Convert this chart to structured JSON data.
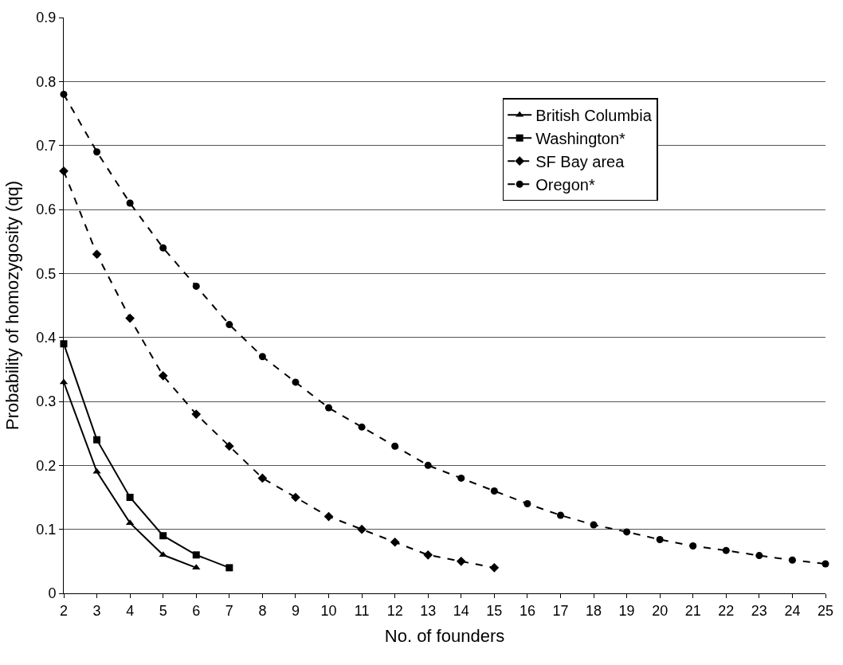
{
  "chart_data": {
    "type": "line",
    "xlabel": "No. of founders",
    "ylabel": "Probability of homozygosity (qq)",
    "xlim": [
      2,
      25
    ],
    "xticks": [
      2,
      3,
      4,
      5,
      6,
      7,
      8,
      9,
      10,
      11,
      12,
      13,
      14,
      15,
      16,
      17,
      18,
      19,
      20,
      21,
      22,
      23,
      24,
      25
    ],
    "ylim": [
      0,
      0.9
    ],
    "yticks": [
      0,
      0.1,
      0.2,
      0.3,
      0.4,
      0.5,
      0.6,
      0.7,
      0.8,
      0.9
    ],
    "grid": "y",
    "legend": "top right",
    "series": [
      {
        "name": "British Columbia",
        "color": "#000000",
        "marker": "triangle",
        "line_style": "solid",
        "x": [
          2,
          3,
          4,
          5,
          6
        ],
        "values": [
          0.33,
          0.19,
          0.11,
          0.06,
          0.04
        ]
      },
      {
        "name": "Washington*",
        "color": "#000000",
        "marker": "square",
        "line_style": "solid",
        "x": [
          2,
          3,
          4,
          5,
          6,
          7
        ],
        "values": [
          0.39,
          0.24,
          0.15,
          0.09,
          0.06,
          0.04
        ]
      },
      {
        "name": "SF Bay area",
        "color": "#000000",
        "marker": "diamond",
        "line_style": "dashed",
        "x": [
          2,
          3,
          4,
          5,
          6,
          7,
          8,
          9,
          10,
          11,
          12,
          13,
          14,
          15
        ],
        "values": [
          0.66,
          0.53,
          0.43,
          0.34,
          0.28,
          0.23,
          0.18,
          0.15,
          0.12,
          0.1,
          0.08,
          0.06,
          0.05,
          0.04
        ]
      },
      {
        "name": "Oregon*",
        "color": "#000000",
        "marker": "circle",
        "line_style": "dashed",
        "x": [
          2,
          3,
          4,
          5,
          6,
          7,
          8,
          9,
          10,
          11,
          12,
          13,
          14,
          15,
          16,
          17,
          18,
          19,
          20,
          21,
          22,
          23,
          24,
          25
        ],
        "values": [
          0.78,
          0.69,
          0.61,
          0.54,
          0.48,
          0.42,
          0.37,
          0.33,
          0.29,
          0.26,
          0.23,
          0.2,
          0.18,
          0.16,
          0.14,
          0.122,
          0.107,
          0.096,
          0.084,
          0.074,
          0.067,
          0.059,
          0.052,
          0.046
        ]
      }
    ]
  }
}
